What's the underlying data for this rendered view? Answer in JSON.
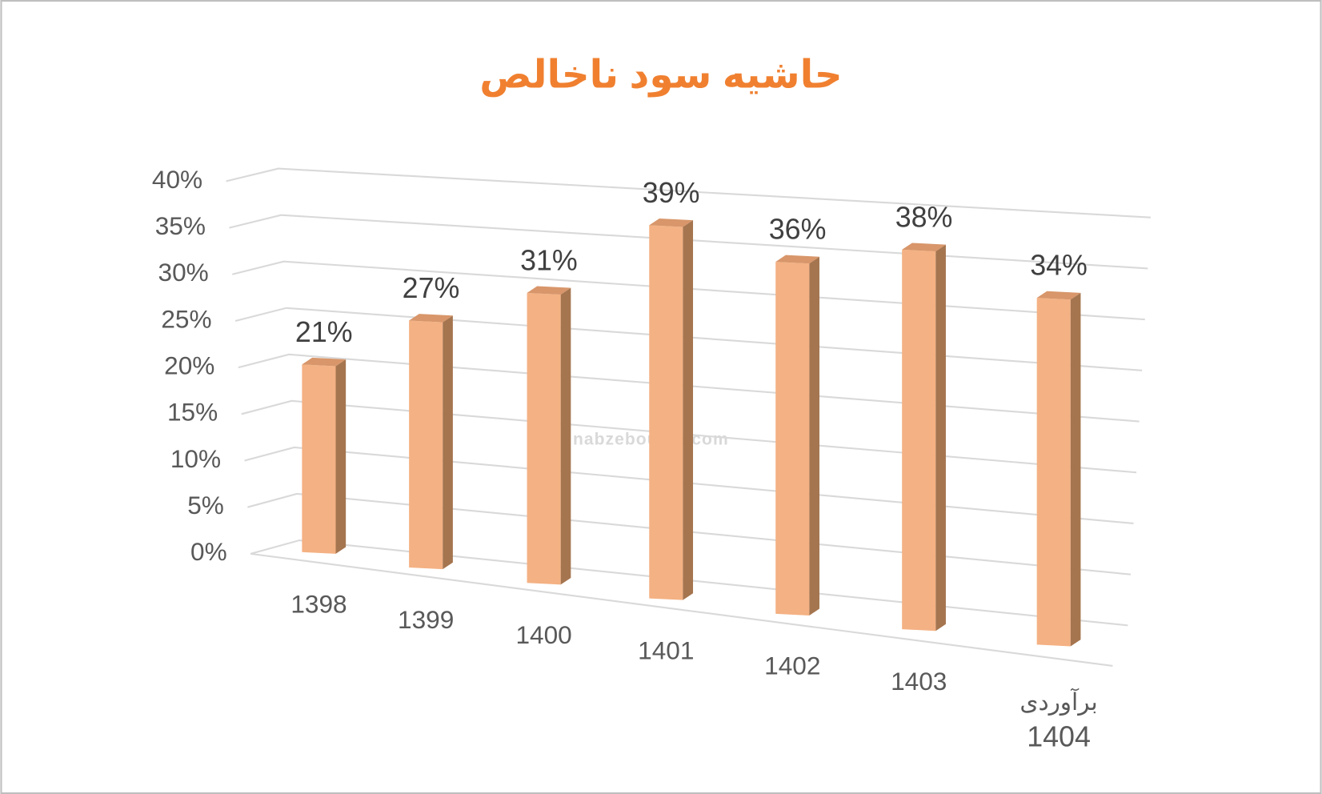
{
  "chart_data": {
    "type": "bar3d",
    "title": "حاشیه سود ناخالص",
    "watermark": "nabzebourse.com",
    "categories": [
      "1398",
      "1399",
      "1400",
      "1401",
      "1402",
      "1403",
      "برآوردی\n1404"
    ],
    "values": [
      21,
      27,
      31,
      39,
      36,
      38,
      34
    ],
    "value_labels": [
      "21%",
      "27%",
      "31%",
      "39%",
      "36%",
      "38%",
      "34%"
    ],
    "color": "#f4b183",
    "ylim": [
      0,
      40
    ],
    "yticks": [
      {
        "value": 0,
        "label": "0%"
      },
      {
        "value": 5,
        "label": "5%"
      },
      {
        "value": 10,
        "label": "10%"
      },
      {
        "value": 15,
        "label": "15%"
      },
      {
        "value": 20,
        "label": "20%"
      },
      {
        "value": 25,
        "label": "25%"
      },
      {
        "value": 30,
        "label": "30%"
      },
      {
        "value": 35,
        "label": "35%"
      },
      {
        "value": 40,
        "label": "40%"
      }
    ],
    "grid": true
  }
}
